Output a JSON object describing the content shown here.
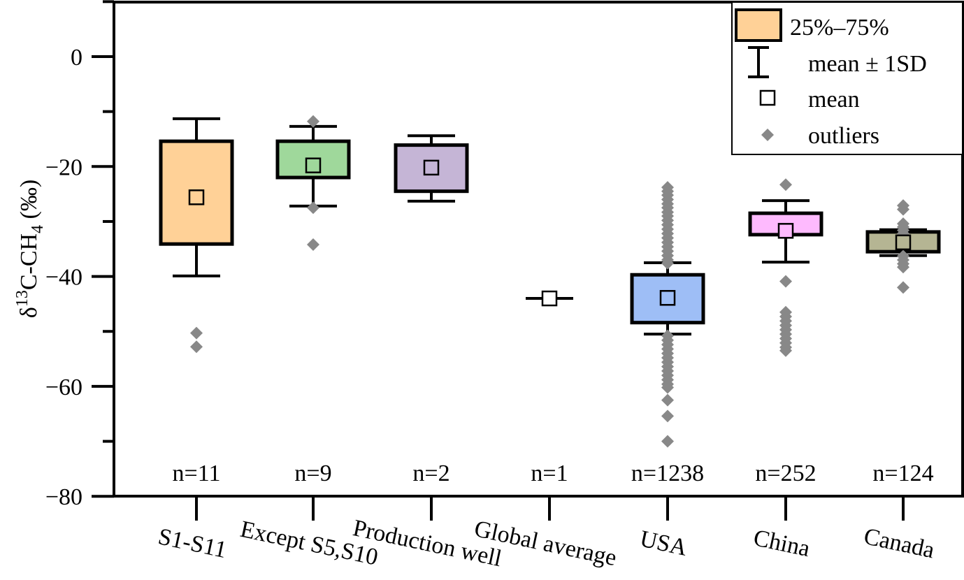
{
  "chart_data": {
    "type": "box",
    "title": "",
    "xlabel": "",
    "ylabel": "δ13C-CH4 (‰)",
    "ylabel_parts": {
      "delta": "δ",
      "sup": "13",
      "base": "C-CH",
      "sub": "4",
      "unit": " (‰)"
    },
    "ylim": [
      -80,
      10
    ],
    "yticks": [
      0,
      -20,
      -40,
      -60,
      -80
    ],
    "ytick_labels": [
      "0",
      "−20",
      "−40",
      "−60",
      "−80"
    ],
    "grid": false,
    "legend_position": "top-right",
    "legend": {
      "box": "25%–75%",
      "sd": "mean ± 1SD",
      "mean": "mean",
      "outliers": "outliers"
    },
    "colors": {
      "outlier": "#888888",
      "legend_box": "#FFD197"
    },
    "categories": [
      "S1-S11",
      "Except S5,S10",
      "Production well",
      "Global average",
      "USA",
      "China",
      "Canada"
    ],
    "series": [
      {
        "name": "S1-S11",
        "n_label": "n=11",
        "color": "#FFD197",
        "q1": -34.1,
        "q3": -15.4,
        "mean": -25.6,
        "sd_low": -39.9,
        "sd_high": -11.3,
        "outliers": [
          -50.3,
          -52.8
        ]
      },
      {
        "name": "Except S5,S10",
        "n_label": "n=9",
        "color": "#9FD89B",
        "q1": -22.0,
        "q3": -15.4,
        "mean": -19.8,
        "sd_low": -27.2,
        "sd_high": -12.7,
        "outliers": [
          -11.8,
          -27.5,
          -34.2
        ]
      },
      {
        "name": "Production well",
        "n_label": "n=2",
        "color": "#C5B5D6",
        "q1": -24.5,
        "q3": -16.1,
        "mean": -20.2,
        "sd_low": -26.3,
        "sd_high": -14.4,
        "outliers": []
      },
      {
        "name": "Global average",
        "n_label": "n=1",
        "color": "#FFFFFF",
        "q1": -44.0,
        "q3": -44.0,
        "mean": -44.0,
        "sd_low": -44.0,
        "sd_high": -44.0,
        "outliers": []
      },
      {
        "name": "USA",
        "n_label": "n=1238",
        "color": "#9EBEF6",
        "q1": -48.4,
        "q3": -39.7,
        "mean": -43.9,
        "sd_low": -50.5,
        "sd_high": -37.5,
        "outliers": [
          -23.8,
          -24.5,
          -25.2,
          -26.0,
          -26.8,
          -27.5,
          -28.3,
          -29.0,
          -29.8,
          -30.6,
          -31.4,
          -32.2,
          -33.0,
          -33.8,
          -34.6,
          -35.4,
          -36.2,
          -37.0,
          -37.6,
          -50.8,
          -51.6,
          -52.4,
          -53.2,
          -54.0,
          -54.8,
          -55.6,
          -56.4,
          -57.2,
          -58.0,
          -58.8,
          -59.6,
          -60.2,
          -62.5,
          -65.4,
          -70.0
        ]
      },
      {
        "name": "China",
        "n_label": "n=252",
        "color": "#FEBAFE",
        "q1": -32.4,
        "q3": -28.5,
        "mean": -31.7,
        "sd_low": -37.4,
        "sd_high": -26.2,
        "outliers": [
          -23.3,
          -40.9,
          -46.5,
          -47.3,
          -48.1,
          -48.9,
          -49.7,
          -50.5,
          -51.3,
          -52.1,
          -52.9,
          -53.5
        ]
      },
      {
        "name": "Canada",
        "n_label": "n=124",
        "color": "#B5B593",
        "q1": -35.5,
        "q3": -31.9,
        "mean": -33.8,
        "sd_low": -36.2,
        "sd_high": -31.5,
        "outliers": [
          -27.1,
          -27.8,
          -30.4,
          -31.0,
          -31.6,
          -32.2,
          -36.3,
          -37.0,
          -37.7,
          -38.3,
          -42.0
        ]
      }
    ]
  }
}
